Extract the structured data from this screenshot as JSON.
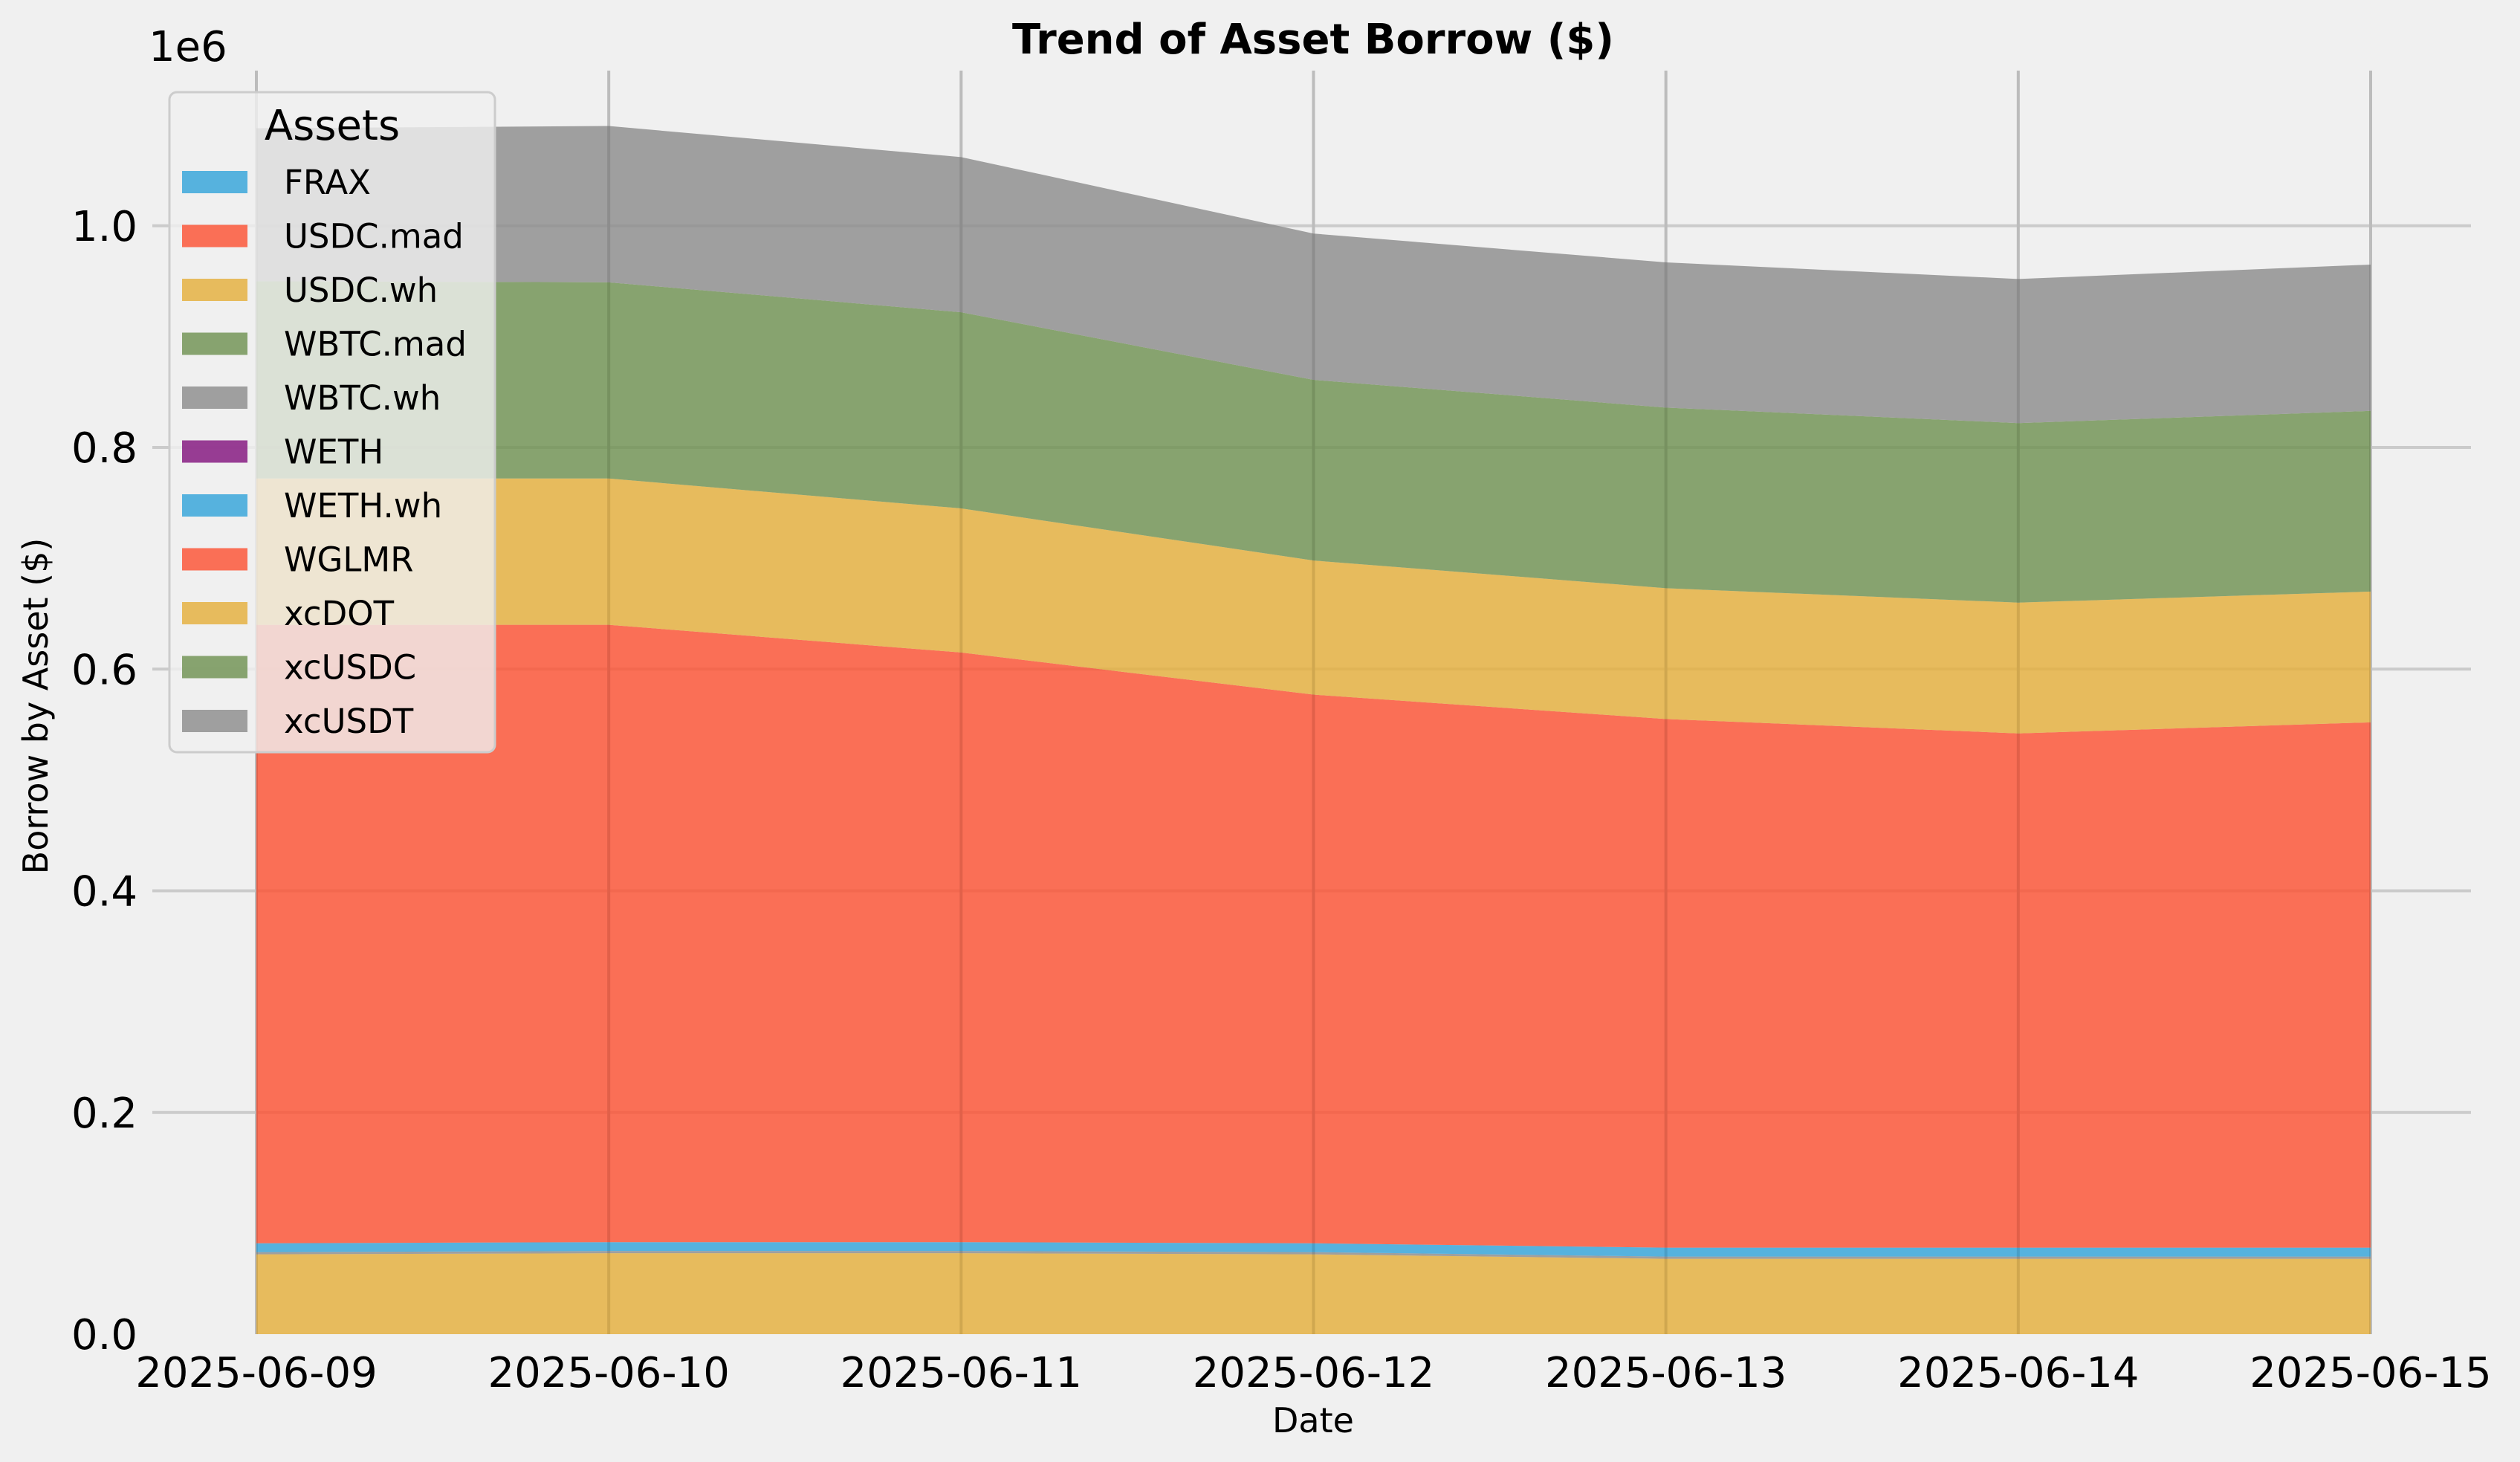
{
  "chart_data": {
    "type": "area",
    "stacked": true,
    "title": "Trend of Asset Borrow ($)",
    "xlabel": "Date",
    "ylabel": "Borrow by Asset ($)",
    "y_offset_label": "1e6",
    "ylim": [
      0,
      1140000
    ],
    "y_ticks": [
      0,
      200000,
      400000,
      600000,
      800000,
      1000000
    ],
    "y_tick_labels": [
      "0.0",
      "0.2",
      "0.4",
      "0.6",
      "0.8",
      "1.0"
    ],
    "x": [
      "2025-06-09",
      "2025-06-10",
      "2025-06-11",
      "2025-06-12",
      "2025-06-13",
      "2025-06-14",
      "2025-06-15"
    ],
    "grid": true,
    "legend": {
      "title": "Assets",
      "placement": "top-left"
    },
    "series": [
      {
        "name": "FRAX",
        "color": "#30a2da",
        "values": [
          0,
          0,
          0,
          0,
          0,
          0,
          0
        ]
      },
      {
        "name": "USDC.mad",
        "color": "#fc4f30",
        "values": [
          0,
          0,
          0,
          0,
          0,
          0,
          0
        ]
      },
      {
        "name": "USDC.wh",
        "color": "#e5ae38",
        "values": [
          72000,
          73000,
          73000,
          72000,
          68000,
          68000,
          68000
        ]
      },
      {
        "name": "WBTC.mad",
        "color": "#6d904f",
        "values": [
          0,
          0,
          0,
          0,
          0,
          0,
          0
        ]
      },
      {
        "name": "WBTC.wh",
        "color": "#8b8b8b",
        "values": [
          2000,
          2000,
          2000,
          2000,
          2000,
          2000,
          2000
        ]
      },
      {
        "name": "WETH",
        "color": "#810f7c",
        "values": [
          0,
          0,
          0,
          0,
          0,
          0,
          0
        ]
      },
      {
        "name": "WETH.wh",
        "color": "#30a2da",
        "values": [
          8000,
          8000,
          8000,
          8000,
          8000,
          8000,
          8000
        ]
      },
      {
        "name": "WGLMR",
        "color": "#fc4f30",
        "values": [
          558000,
          557000,
          532000,
          495000,
          477000,
          464000,
          474000
        ]
      },
      {
        "name": "xcDOT",
        "color": "#e5ae38",
        "values": [
          132000,
          132000,
          130000,
          121000,
          118000,
          118000,
          118000
        ]
      },
      {
        "name": "xcUSDC",
        "color": "#6d904f",
        "values": [
          178000,
          177000,
          177000,
          163000,
          163000,
          162000,
          163000
        ]
      },
      {
        "name": "xcUSDT",
        "color": "#8b8b8b",
        "values": [
          138000,
          141000,
          140000,
          132000,
          131000,
          130000,
          132000
        ]
      }
    ]
  }
}
